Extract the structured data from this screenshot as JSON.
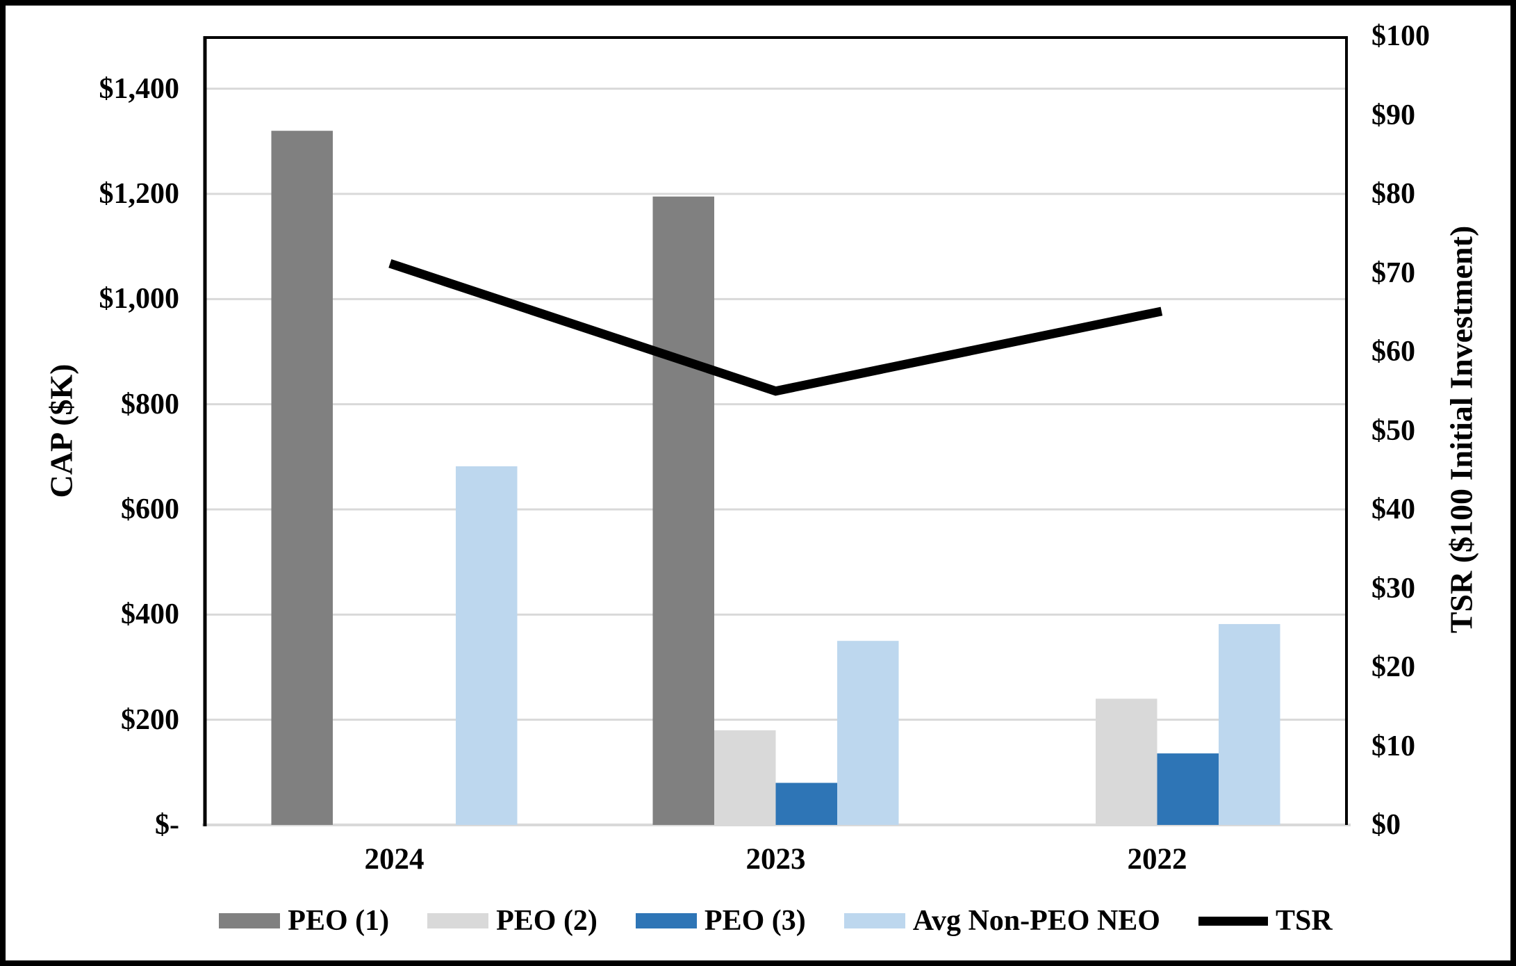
{
  "chart_data": {
    "type": "bar",
    "subtype": "grouped-bars-with-line-secondary-axis",
    "title": "",
    "categories": [
      "2024",
      "2023",
      "2022"
    ],
    "series": [
      {
        "name": "PEO (1)",
        "type": "bar",
        "axis": "left",
        "color": "#808080",
        "values": [
          1320,
          1195,
          0
        ]
      },
      {
        "name": "PEO (2)",
        "type": "bar",
        "axis": "left",
        "color": "#D9D9D9",
        "values": [
          0,
          180,
          240
        ]
      },
      {
        "name": "PEO (3)",
        "type": "bar",
        "axis": "left",
        "color": "#2E75B6",
        "values": [
          0,
          80,
          136
        ]
      },
      {
        "name": "Avg Non-PEO NEO",
        "type": "bar",
        "axis": "left",
        "color": "#BDD7EE",
        "values": [
          682,
          350,
          382
        ]
      },
      {
        "name": "TSR",
        "type": "line",
        "axis": "right",
        "color": "#000000",
        "values": [
          71,
          55,
          65
        ]
      }
    ],
    "left_axis": {
      "label": "CAP ($K)",
      "min": 0,
      "max": 1500,
      "tick_step": 200,
      "tick_values": [
        0,
        200,
        400,
        600,
        800,
        1000,
        1200,
        1400
      ],
      "ticks": [
        "$-",
        "$200",
        "$400",
        "$600",
        "$800",
        "$1,000",
        "$1,200",
        "$1,400"
      ]
    },
    "right_axis": {
      "label": "TSR ($100 Initial Investment)",
      "min": 0,
      "max": 100,
      "tick_step": 10,
      "tick_values": [
        0,
        10,
        20,
        30,
        40,
        50,
        60,
        70,
        80,
        90,
        100
      ],
      "ticks": [
        "$0",
        "$10",
        "$20",
        "$30",
        "$40",
        "$50",
        "$60",
        "$70",
        "$80",
        "$90",
        "$100"
      ]
    },
    "grid": true,
    "legend_position": "bottom",
    "colors": {
      "gridline": "#D9D9D9",
      "baseline": "#D9D9D9",
      "axis_line": "#000000",
      "plot_border": "#000000",
      "outer_border": "#000000",
      "text": "#000000"
    }
  }
}
